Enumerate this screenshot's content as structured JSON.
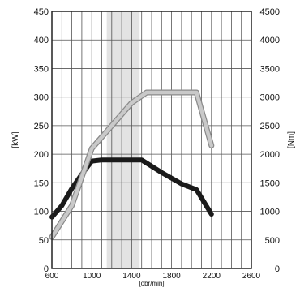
{
  "chart_data": {
    "type": "line",
    "x_title": "[obr/min]",
    "y_left_title": "[kW]",
    "y_right_title": "[Nm]",
    "x_range": [
      600,
      2600
    ],
    "y_left_range": [
      0,
      450
    ],
    "y_right_range": [
      0,
      4500
    ],
    "x_ticks": [
      "600",
      "1000",
      "1400",
      "1800",
      "2200",
      "2600"
    ],
    "y_left_ticks": [
      "0",
      "50",
      "100",
      "150",
      "200",
      "250",
      "300",
      "350",
      "400",
      "450"
    ],
    "y_right_ticks": [
      "0",
      "500",
      "1000",
      "1500",
      "2000",
      "2500",
      "3000",
      "3500",
      "4000",
      "4500"
    ],
    "grid": true,
    "highlight_band": {
      "x_start": 1150,
      "x_end": 1480,
      "color": "#e3e3e3"
    },
    "series": [
      {
        "axis": "left",
        "color": "#1a1a1a",
        "points": [
          {
            "x": 600,
            "y": 90
          },
          {
            "x": 700,
            "y": 110
          },
          {
            "x": 800,
            "y": 140
          },
          {
            "x": 900,
            "y": 165
          },
          {
            "x": 1000,
            "y": 188
          },
          {
            "x": 1100,
            "y": 190
          },
          {
            "x": 1300,
            "y": 190
          },
          {
            "x": 1500,
            "y": 190
          },
          {
            "x": 1700,
            "y": 168
          },
          {
            "x": 1900,
            "y": 148
          },
          {
            "x": 2050,
            "y": 138
          },
          {
            "x": 2200,
            "y": 95
          }
        ]
      },
      {
        "axis": "right",
        "color": "#c9c9c9",
        "points": [
          {
            "x": 600,
            "y": 550
          },
          {
            "x": 800,
            "y": 1100
          },
          {
            "x": 1000,
            "y": 2100
          },
          {
            "x": 1200,
            "y": 2500
          },
          {
            "x": 1400,
            "y": 2900
          },
          {
            "x": 1550,
            "y": 3080
          },
          {
            "x": 1800,
            "y": 3080
          },
          {
            "x": 2050,
            "y": 3080
          },
          {
            "x": 2200,
            "y": 2150
          }
        ]
      }
    ]
  }
}
